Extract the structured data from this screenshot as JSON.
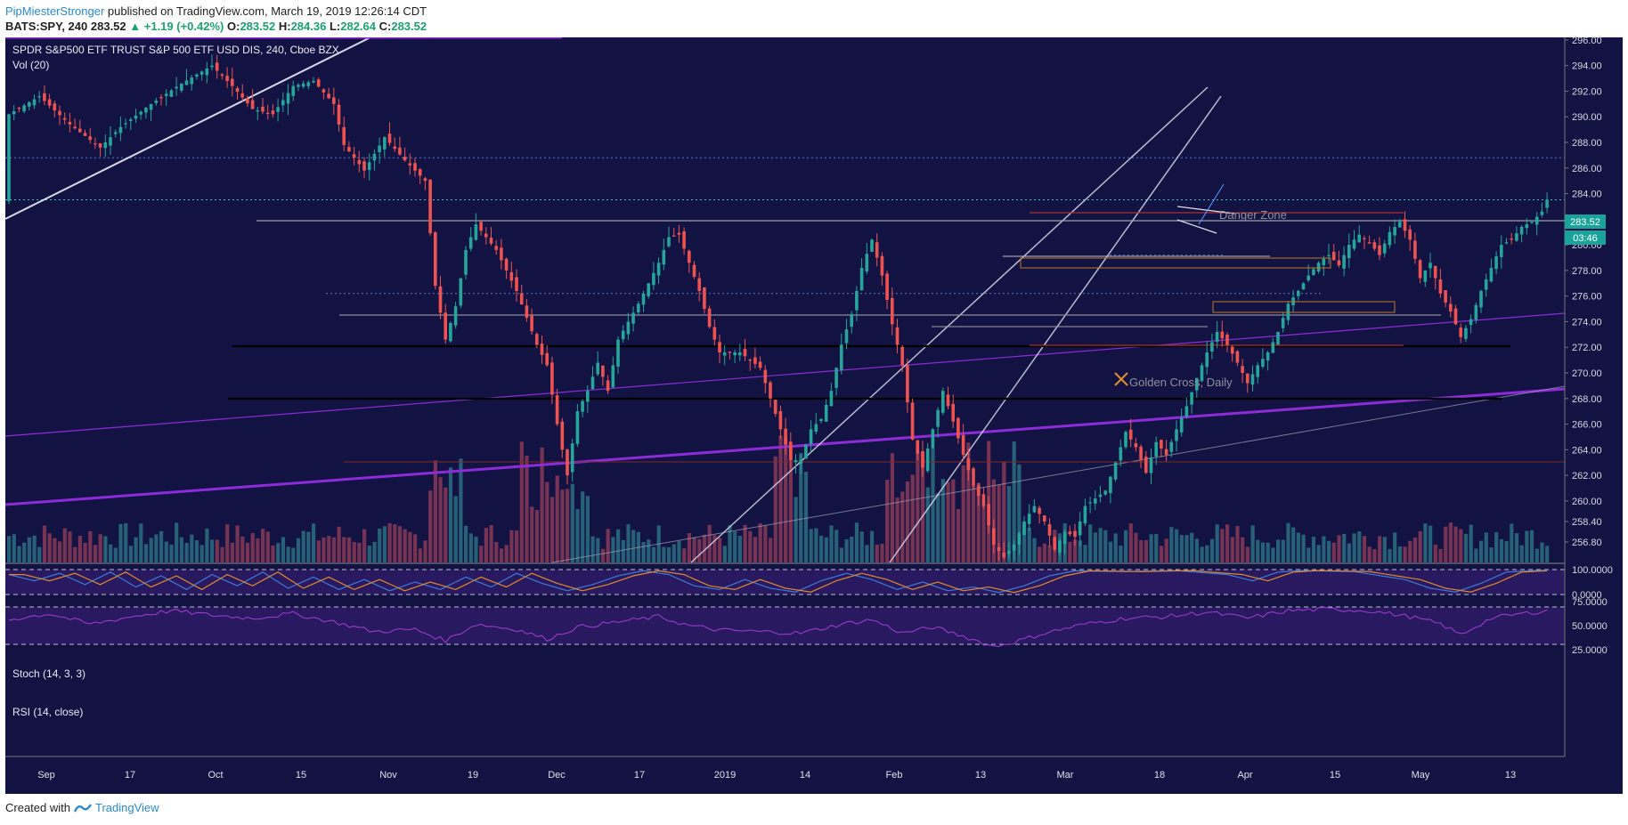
{
  "header": {
    "author": "PipMiesterStronger",
    "published_text": " published on TradingView.com, March 19, 2019 12:26:14 CDT",
    "symbol_line": "BATS:SPY, 240",
    "last": "283.52",
    "change": "▲ +1.19 (+0.42%)",
    "o_label": "O:",
    "o": "283.52",
    "h_label": "H:",
    "h": "284.36",
    "l_label": "L:",
    "l": "282.64",
    "c_label": "C:",
    "c": "283.52"
  },
  "chart_title": "SPDR S&P500 ETF TRUST S&P 500 ETF USD DIS, 240, Cboe BZX",
  "vol_label": "Vol (20)",
  "stoch_label": "Stoch (14, 3, 3)",
  "rsi_label": "RSI (14, close)",
  "price_tag": "283.52",
  "countdown_tag": "03:46",
  "footer": {
    "created_with": "Created with",
    "brand": "TradingView"
  },
  "colors": {
    "background": "#131343",
    "up": "#26a69a",
    "down": "#ef5350",
    "trendline_purple": "#8e2bd9",
    "trendline_white": "#d8d8e8",
    "tag": "#1aa39a"
  },
  "chart_data": {
    "type": "candlestick",
    "title": "SPDR S&P500 ETF TRUST S&P 500 ETF USD DIS, 240, Cboe BZX",
    "x_ticks": [
      "Sep",
      "17",
      "Oct",
      "15",
      "Nov",
      "19",
      "Dec",
      "17",
      "2019",
      "14",
      "Feb",
      "13",
      "Mar",
      "18",
      "Apr",
      "15",
      "May",
      "13"
    ],
    "y_ticks": [
      296,
      294,
      292,
      290,
      288,
      286,
      284,
      282,
      280,
      278,
      276,
      274,
      272,
      270,
      268,
      266,
      264,
      262,
      260,
      258.4,
      256.8
    ],
    "ylim": [
      255.2,
      296.2
    ],
    "stoch_ticks": [
      "100.0000",
      "0.0000"
    ],
    "rsi_ticks": [
      "75.0000",
      "50.0000",
      "25.0000"
    ],
    "annotations": [
      "Danger Zone",
      "Golden Cross, Daily"
    ],
    "last_price": 283.52,
    "path": [
      [
        0,
        290.2
      ],
      [
        6,
        291.6
      ],
      [
        12,
        289.4
      ],
      [
        18,
        287.6
      ],
      [
        22,
        289.2
      ],
      [
        28,
        291.0
      ],
      [
        34,
        292.6
      ],
      [
        40,
        294.0
      ],
      [
        44,
        292.4
      ],
      [
        48,
        290.6
      ],
      [
        52,
        290.2
      ],
      [
        56,
        292.4
      ],
      [
        60,
        292.8
      ],
      [
        64,
        291.0
      ],
      [
        66,
        287.8
      ],
      [
        70,
        285.8
      ],
      [
        74,
        288.4
      ],
      [
        78,
        286.6
      ],
      [
        82,
        285.0
      ],
      [
        84,
        276.8
      ],
      [
        86,
        272.6
      ],
      [
        88,
        275.2
      ],
      [
        90,
        279.6
      ],
      [
        92,
        281.6
      ],
      [
        96,
        279.6
      ],
      [
        100,
        276.4
      ],
      [
        104,
        272.2
      ],
      [
        106,
        270.6
      ],
      [
        108,
        266.0
      ],
      [
        110,
        262.0
      ],
      [
        112,
        267.0
      ],
      [
        114,
        268.6
      ],
      [
        116,
        270.8
      ],
      [
        118,
        268.6
      ],
      [
        120,
        272.6
      ],
      [
        124,
        275.4
      ],
      [
        128,
        278.6
      ],
      [
        130,
        280.6
      ],
      [
        132,
        280.8
      ],
      [
        134,
        278.6
      ],
      [
        136,
        276.4
      ],
      [
        138,
        273.6
      ],
      [
        140,
        271.6
      ],
      [
        144,
        271.6
      ],
      [
        148,
        270.4
      ],
      [
        152,
        265.6
      ],
      [
        154,
        263.2
      ],
      [
        156,
        263.2
      ],
      [
        158,
        265.6
      ],
      [
        160,
        266.4
      ],
      [
        162,
        268.6
      ],
      [
        164,
        272.2
      ],
      [
        166,
        274.6
      ],
      [
        168,
        278.2
      ],
      [
        170,
        280.4
      ],
      [
        172,
        277.6
      ],
      [
        174,
        273.8
      ],
      [
        176,
        270.6
      ],
      [
        178,
        264.8
      ],
      [
        180,
        262.6
      ],
      [
        182,
        265.6
      ],
      [
        184,
        268.6
      ],
      [
        186,
        266.2
      ],
      [
        188,
        263.6
      ],
      [
        190,
        261.2
      ],
      [
        192,
        259.6
      ],
      [
        194,
        256.6
      ],
      [
        196,
        255.6
      ],
      [
        198,
        256.6
      ],
      [
        200,
        258.4
      ],
      [
        202,
        259.6
      ],
      [
        204,
        258.4
      ],
      [
        206,
        256.2
      ],
      [
        208,
        257.6
      ],
      [
        210,
        257.2
      ],
      [
        212,
        259.6
      ],
      [
        214,
        260.2
      ],
      [
        216,
        260.8
      ],
      [
        218,
        263.0
      ],
      [
        220,
        265.4
      ],
      [
        222,
        264.2
      ],
      [
        224,
        262.2
      ],
      [
        226,
        264.6
      ],
      [
        228,
        263.6
      ],
      [
        230,
        265.6
      ],
      [
        232,
        267.4
      ],
      [
        234,
        269.6
      ],
      [
        236,
        271.6
      ],
      [
        238,
        273.2
      ],
      [
        240,
        272.2
      ],
      [
        242,
        270.8
      ],
      [
        244,
        269.2
      ],
      [
        246,
        270.6
      ],
      [
        248,
        271.6
      ],
      [
        250,
        273.2
      ],
      [
        252,
        275.4
      ],
      [
        254,
        276.4
      ],
      [
        256,
        277.6
      ],
      [
        258,
        278.6
      ],
      [
        260,
        279.2
      ],
      [
        262,
        278.4
      ],
      [
        264,
        280.0
      ],
      [
        266,
        280.8
      ],
      [
        268,
        280.2
      ],
      [
        270,
        279.2
      ],
      [
        272,
        281.0
      ],
      [
        274,
        281.8
      ],
      [
        276,
        280.4
      ],
      [
        278,
        277.4
      ],
      [
        280,
        278.6
      ],
      [
        282,
        276.2
      ],
      [
        284,
        274.8
      ],
      [
        286,
        272.8
      ],
      [
        288,
        274.2
      ],
      [
        290,
        276.4
      ],
      [
        292,
        278.2
      ],
      [
        294,
        280.0
      ],
      [
        296,
        280.4
      ],
      [
        298,
        281.4
      ],
      [
        300,
        281.8
      ],
      [
        302,
        282.6
      ],
      [
        303,
        283.52
      ]
    ],
    "stoch_path": [
      [
        0,
        80
      ],
      [
        5,
        55
      ],
      [
        10,
        85
      ],
      [
        15,
        40
      ],
      [
        20,
        90
      ],
      [
        25,
        30
      ],
      [
        30,
        75
      ],
      [
        35,
        20
      ],
      [
        40,
        80
      ],
      [
        45,
        35
      ],
      [
        50,
        90
      ],
      [
        55,
        25
      ],
      [
        60,
        70
      ],
      [
        65,
        20
      ],
      [
        70,
        60
      ],
      [
        75,
        15
      ],
      [
        80,
        50
      ],
      [
        85,
        20
      ],
      [
        90,
        70
      ],
      [
        95,
        30
      ],
      [
        100,
        85
      ],
      [
        105,
        45
      ],
      [
        110,
        15
      ],
      [
        115,
        40
      ],
      [
        120,
        75
      ],
      [
        125,
        95
      ],
      [
        130,
        80
      ],
      [
        135,
        35
      ],
      [
        140,
        20
      ],
      [
        145,
        60
      ],
      [
        150,
        25
      ],
      [
        155,
        10
      ],
      [
        160,
        55
      ],
      [
        165,
        85
      ],
      [
        170,
        60
      ],
      [
        175,
        20
      ],
      [
        180,
        50
      ],
      [
        185,
        15
      ],
      [
        190,
        30
      ],
      [
        195,
        8
      ],
      [
        200,
        35
      ],
      [
        205,
        75
      ],
      [
        210,
        95
      ],
      [
        220,
        92
      ],
      [
        230,
        96
      ],
      [
        240,
        80
      ],
      [
        245,
        55
      ],
      [
        250,
        90
      ],
      [
        255,
        96
      ],
      [
        265,
        92
      ],
      [
        275,
        60
      ],
      [
        280,
        25
      ],
      [
        285,
        10
      ],
      [
        290,
        45
      ],
      [
        295,
        90
      ],
      [
        303,
        98
      ]
    ],
    "rsi_path": [
      [
        0,
        58
      ],
      [
        8,
        66
      ],
      [
        16,
        52
      ],
      [
        24,
        62
      ],
      [
        32,
        70
      ],
      [
        40,
        64
      ],
      [
        48,
        60
      ],
      [
        56,
        66
      ],
      [
        64,
        55
      ],
      [
        72,
        42
      ],
      [
        80,
        45
      ],
      [
        86,
        30
      ],
      [
        92,
        52
      ],
      [
        100,
        45
      ],
      [
        106,
        32
      ],
      [
        112,
        48
      ],
      [
        120,
        55
      ],
      [
        128,
        62
      ],
      [
        134,
        50
      ],
      [
        140,
        44
      ],
      [
        148,
        42
      ],
      [
        156,
        40
      ],
      [
        164,
        52
      ],
      [
        170,
        58
      ],
      [
        176,
        40
      ],
      [
        182,
        48
      ],
      [
        188,
        36
      ],
      [
        194,
        22
      ],
      [
        198,
        28
      ],
      [
        204,
        40
      ],
      [
        212,
        52
      ],
      [
        220,
        60
      ],
      [
        228,
        62
      ],
      [
        236,
        68
      ],
      [
        244,
        60
      ],
      [
        252,
        70
      ],
      [
        260,
        72
      ],
      [
        268,
        70
      ],
      [
        276,
        62
      ],
      [
        282,
        52
      ],
      [
        286,
        38
      ],
      [
        292,
        60
      ],
      [
        298,
        66
      ],
      [
        303,
        70
      ]
    ]
  }
}
